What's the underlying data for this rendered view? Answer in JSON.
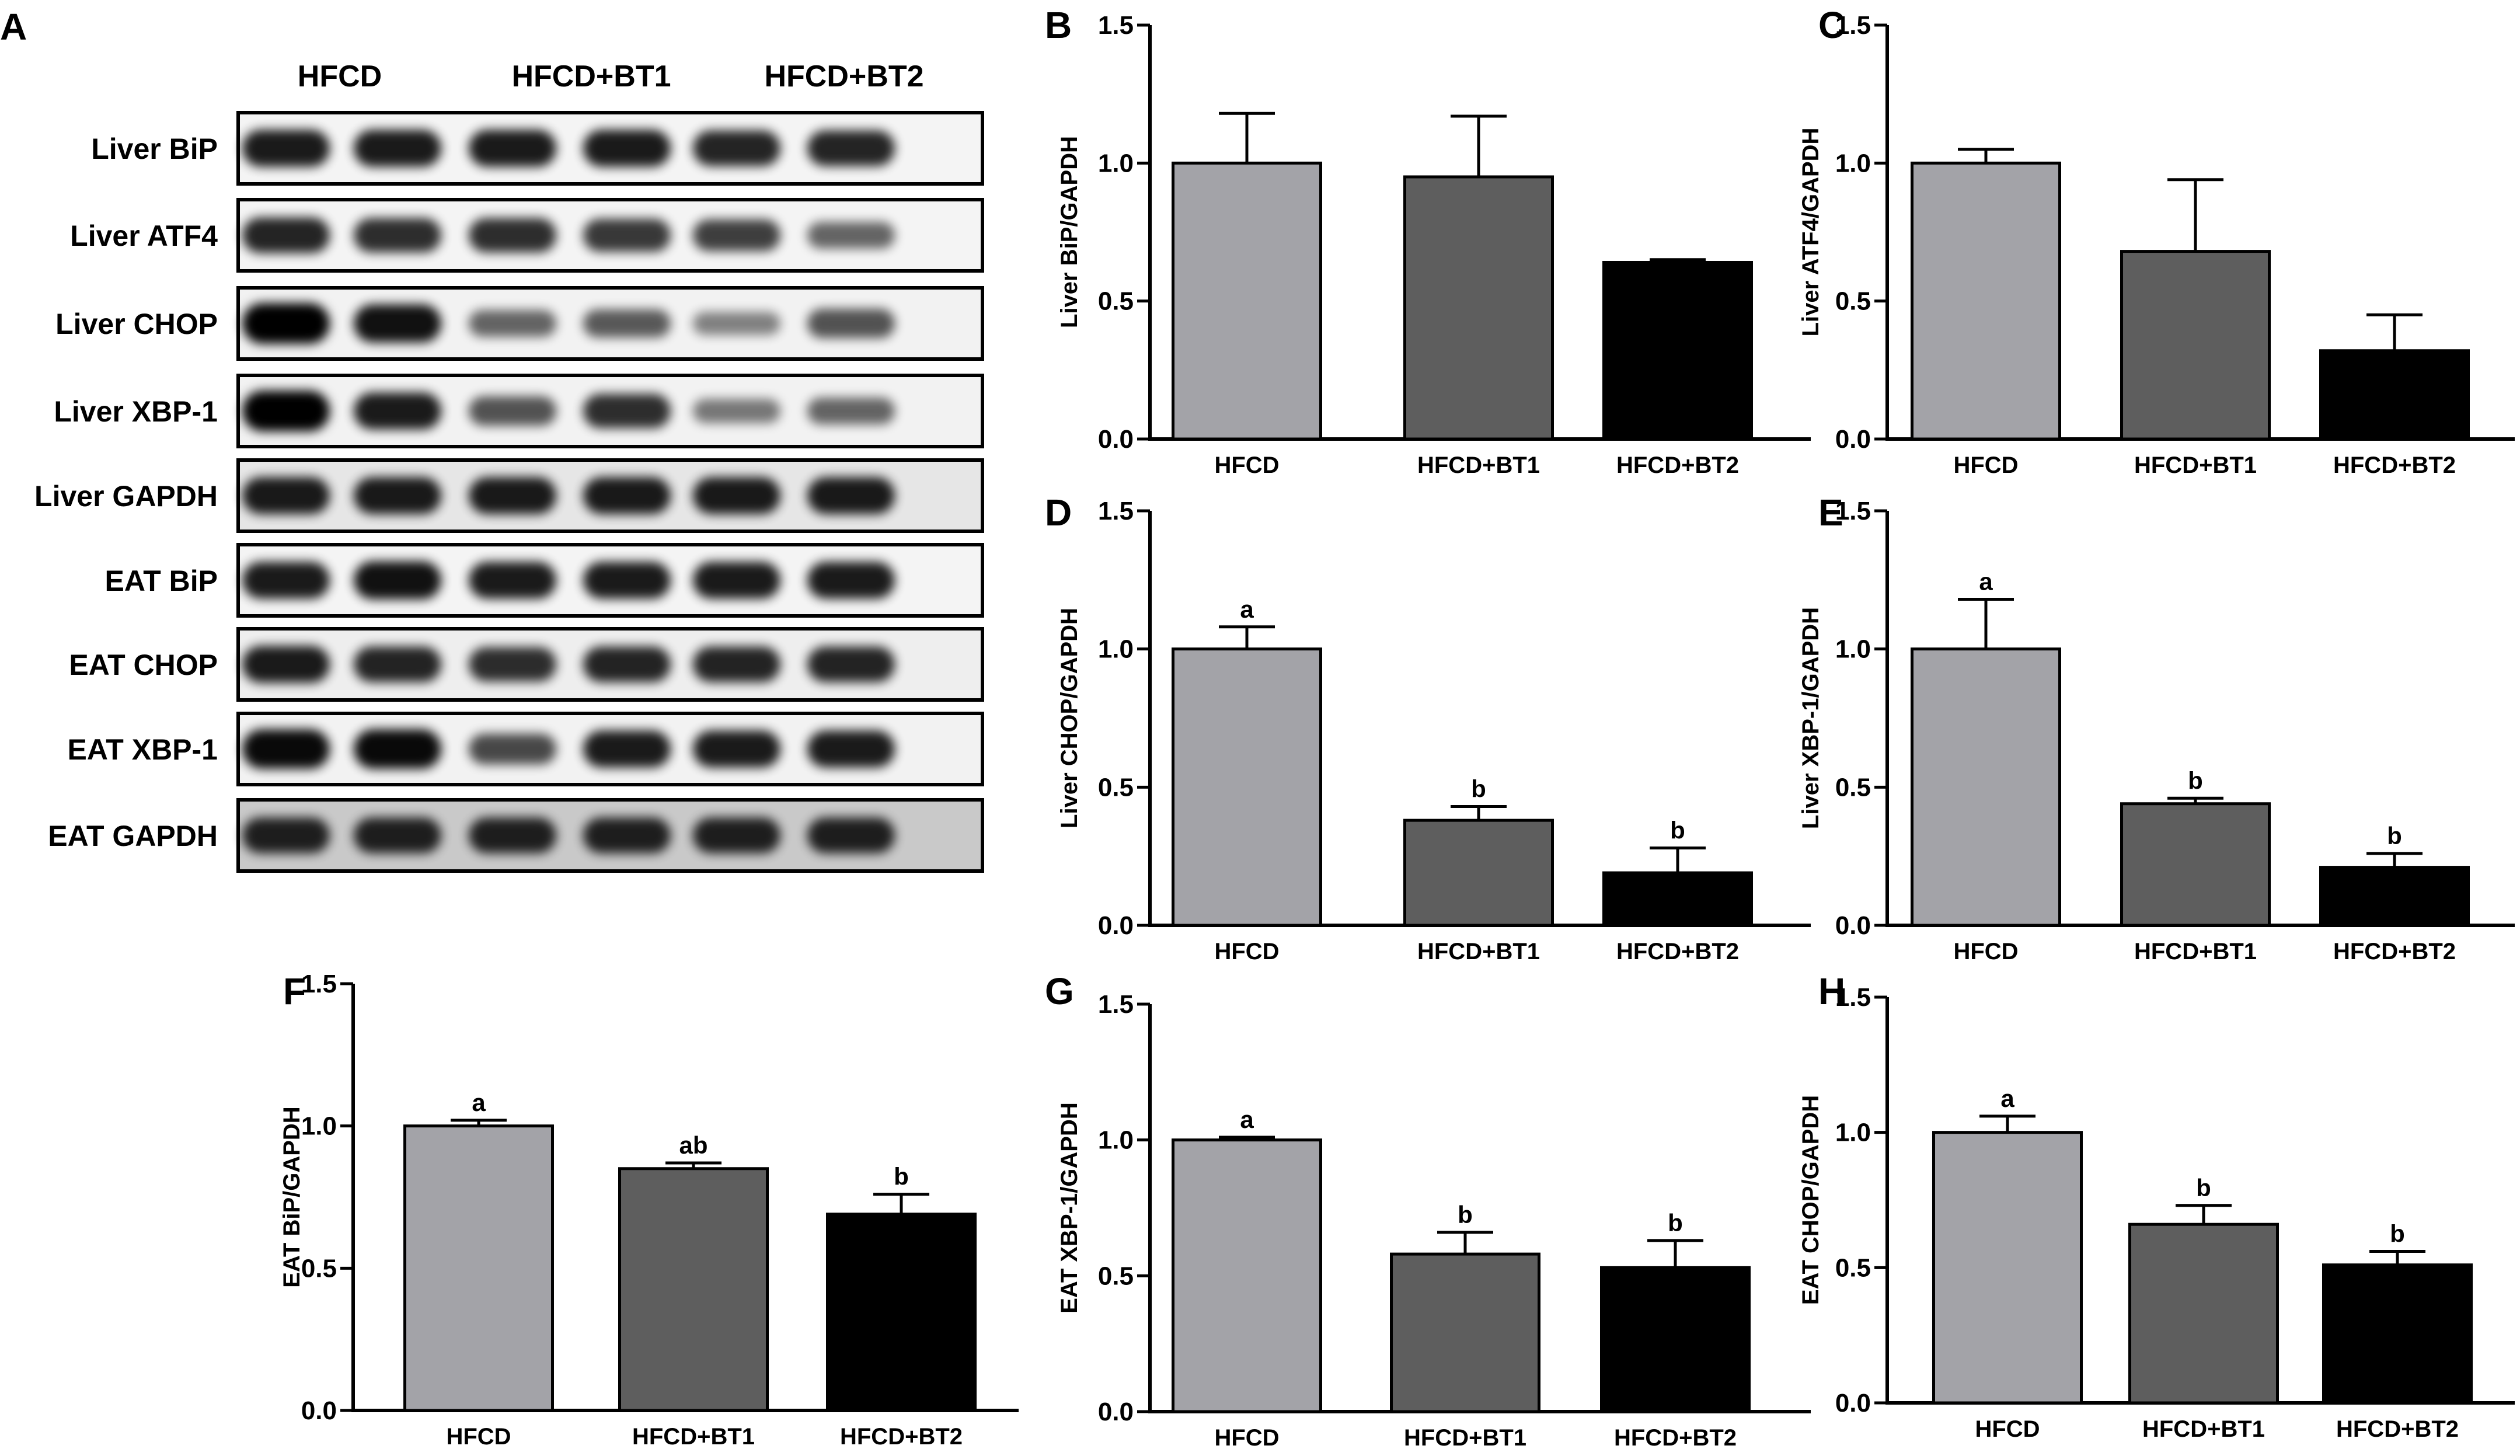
{
  "blot": {
    "panel_letter": "A",
    "lanes": [
      "HFCD",
      "HFCD+BT1",
      "HFCD+BT2"
    ],
    "rows": [
      {
        "label": "Liver BiP",
        "intensity": [
          0.85,
          0.85,
          0.85,
          0.85,
          0.8,
          0.8
        ],
        "background": "#f4f4f4"
      },
      {
        "label": "Liver ATF4",
        "intensity": [
          0.8,
          0.75,
          0.75,
          0.7,
          0.65,
          0.45
        ],
        "background": "#f4f4f4"
      },
      {
        "label": "Liver CHOP",
        "intensity": [
          1.0,
          0.9,
          0.45,
          0.5,
          0.3,
          0.55
        ],
        "background": "#f2f2f2"
      },
      {
        "label": "Liver XBP-1",
        "intensity": [
          1.0,
          0.85,
          0.55,
          0.75,
          0.35,
          0.45
        ],
        "background": "#f2f2f2"
      },
      {
        "label": "Liver GAPDH",
        "intensity": [
          0.85,
          0.85,
          0.85,
          0.85,
          0.85,
          0.85
        ],
        "background": "#e6e6e6"
      },
      {
        "label": "EAT BiP",
        "intensity": [
          0.85,
          0.9,
          0.85,
          0.85,
          0.85,
          0.85
        ],
        "background": "#f4f4f4"
      },
      {
        "label": "EAT CHOP",
        "intensity": [
          0.85,
          0.8,
          0.75,
          0.8,
          0.8,
          0.8
        ],
        "background": "#eeeeee"
      },
      {
        "label": "EAT XBP-1",
        "intensity": [
          0.95,
          0.95,
          0.6,
          0.85,
          0.85,
          0.85
        ],
        "background": "#f2f2f2"
      },
      {
        "label": "EAT GAPDH",
        "intensity": [
          0.8,
          0.8,
          0.8,
          0.8,
          0.8,
          0.8
        ],
        "background": "#c9c9c9"
      }
    ]
  },
  "colors": {
    "HFCD": "#a3a3a8",
    "HFCD+BT1": "#5e5e5e",
    "HFCD+BT2": "#000000",
    "axis": "#000000"
  },
  "chart_data": [
    {
      "panel_letter": "B",
      "type": "bar",
      "ylabel": "Liver BiP/GAPDH",
      "ylim": [
        0,
        1.5
      ],
      "yticks": [
        "0.0",
        "0.5",
        "1.0",
        "1.5"
      ],
      "categories": [
        "HFCD",
        "HFCD+BT1",
        "HFCD+BT2"
      ],
      "values": [
        1.0,
        0.95,
        0.64
      ],
      "errors": [
        0.18,
        0.22,
        0.01
      ],
      "annotations": [
        "",
        "",
        ""
      ]
    },
    {
      "panel_letter": "C",
      "type": "bar",
      "ylabel": "Liver ATF4/GAPDH",
      "ylim": [
        0,
        1.5
      ],
      "yticks": [
        "0.0",
        "0.5",
        "1.0",
        "1.5"
      ],
      "categories": [
        "HFCD",
        "HFCD+BT1",
        "HFCD+BT2"
      ],
      "values": [
        1.0,
        0.68,
        0.32
      ],
      "errors": [
        0.05,
        0.26,
        0.13
      ],
      "annotations": [
        "",
        "",
        ""
      ]
    },
    {
      "panel_letter": "D",
      "type": "bar",
      "ylabel": "Liver CHOP/GAPDH",
      "ylim": [
        0,
        1.5
      ],
      "yticks": [
        "0.0",
        "0.5",
        "1.0",
        "1.5"
      ],
      "categories": [
        "HFCD",
        "HFCD+BT1",
        "HFCD+BT2"
      ],
      "values": [
        1.0,
        0.38,
        0.19
      ],
      "errors": [
        0.08,
        0.05,
        0.09
      ],
      "annotations": [
        "a",
        "b",
        "b"
      ]
    },
    {
      "panel_letter": "E",
      "type": "bar",
      "ylabel": "Liver XBP-1/GAPDH",
      "ylim": [
        0,
        1.5
      ],
      "yticks": [
        "0.0",
        "0.5",
        "1.0",
        "1.5"
      ],
      "categories": [
        "HFCD",
        "HFCD+BT1",
        "HFCD+BT2"
      ],
      "values": [
        1.0,
        0.44,
        0.21
      ],
      "errors": [
        0.18,
        0.02,
        0.05
      ],
      "annotations": [
        "a",
        "b",
        "b"
      ]
    },
    {
      "panel_letter": "F",
      "type": "bar",
      "ylabel": "EAT BiP/GAPDH",
      "ylim": [
        0,
        1.5
      ],
      "yticks": [
        "0.0",
        "0.5",
        "1.0",
        "1.5"
      ],
      "categories": [
        "HFCD",
        "HFCD+BT1",
        "HFCD+BT2"
      ],
      "values": [
        1.0,
        0.85,
        0.69
      ],
      "errors": [
        0.02,
        0.02,
        0.07
      ],
      "annotations": [
        "a",
        "ab",
        "b"
      ]
    },
    {
      "panel_letter": "G",
      "type": "bar",
      "ylabel": "EAT XBP-1/GAPDH",
      "ylim": [
        0,
        1.5
      ],
      "yticks": [
        "0.0",
        "0.5",
        "1.0",
        "1.5"
      ],
      "categories": [
        "HFCD",
        "HFCD+BT1",
        "HFCD+BT2"
      ],
      "values": [
        1.0,
        0.58,
        0.53
      ],
      "errors": [
        0.01,
        0.08,
        0.1
      ],
      "annotations": [
        "a",
        "b",
        "b"
      ]
    },
    {
      "panel_letter": "H",
      "type": "bar",
      "ylabel": "EAT CHOP/GAPDH",
      "ylim": [
        0,
        1.5
      ],
      "yticks": [
        "0.0",
        "0.5",
        "1.0",
        "1.5"
      ],
      "categories": [
        "HFCD",
        "HFCD+BT1",
        "HFCD+BT2"
      ],
      "values": [
        1.0,
        0.66,
        0.51
      ],
      "errors": [
        0.06,
        0.07,
        0.05
      ],
      "annotations": [
        "a",
        "b",
        "b"
      ]
    }
  ]
}
